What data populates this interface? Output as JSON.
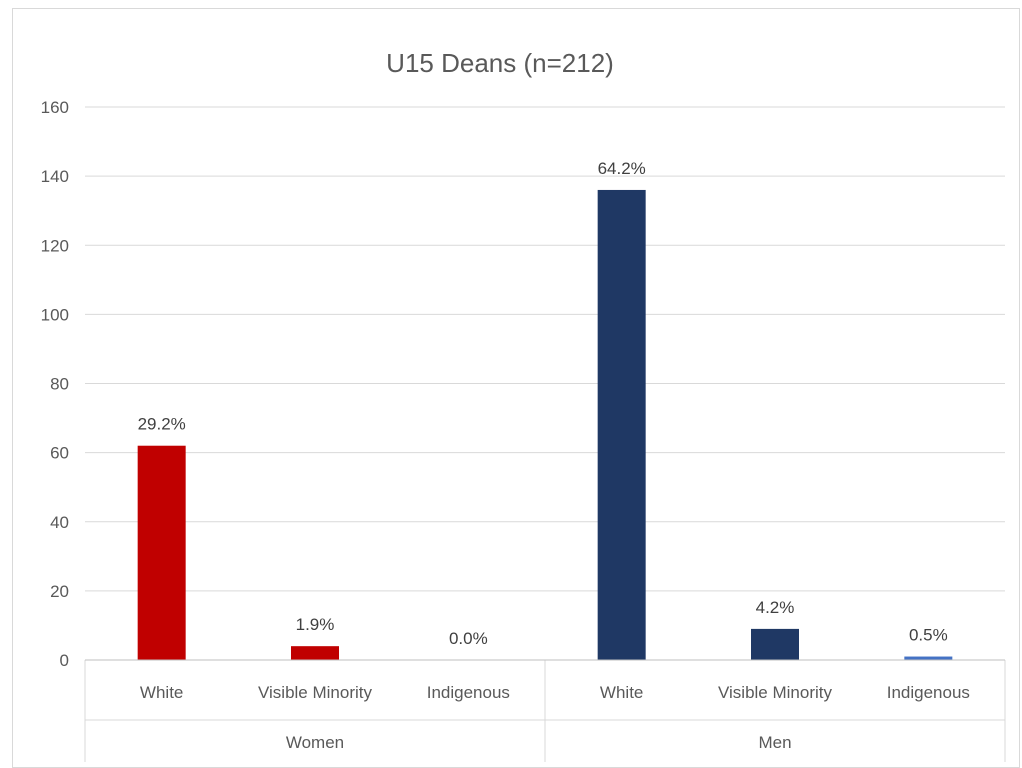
{
  "chart_data": {
    "type": "bar",
    "title": "U15 Deans (n=212)",
    "ylim": [
      0,
      160
    ],
    "yticks": [
      0,
      20,
      40,
      60,
      80,
      100,
      120,
      140,
      160
    ],
    "grid": true,
    "groups": [
      {
        "name": "Women",
        "bars": [
          {
            "category": "White",
            "value": 62,
            "label": "29.2%",
            "color": "#c00000"
          },
          {
            "category": "Visible Minority",
            "value": 4,
            "label": "1.9%",
            "color": "#c00000"
          },
          {
            "category": "Indigenous",
            "value": 0,
            "label": "0.0%",
            "color": "#c00000"
          }
        ]
      },
      {
        "name": "Men",
        "bars": [
          {
            "category": "White",
            "value": 136,
            "label": "64.2%",
            "color": "#1f3864"
          },
          {
            "category": "Visible Minority",
            "value": 9,
            "label": "4.2%",
            "color": "#1f3864"
          },
          {
            "category": "Indigenous",
            "value": 1,
            "label": "0.5%",
            "color": "#4472c4"
          }
        ]
      }
    ]
  }
}
